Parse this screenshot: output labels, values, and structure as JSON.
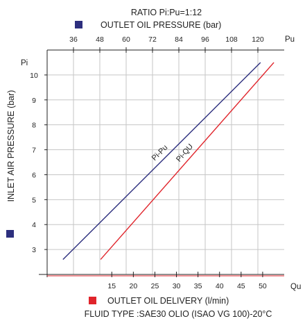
{
  "chart_data": {
    "type": "line",
    "title": "RATIO Pi:Pu=1:12",
    "subtitle": "FLUID TYPE :SAE30 OLIO (ISAO VG 100)-20°C",
    "axes": {
      "y_left": {
        "short_label": "Pi",
        "legend_label": "INLET AIR PRESSURE (bar)",
        "range": [
          2,
          11
        ],
        "ticks": [
          3,
          4,
          5,
          6,
          7,
          8,
          9,
          10
        ],
        "color": "#2d2f7e"
      },
      "x_top": {
        "short_label": "Pu",
        "legend_label": "OUTLET OIL PRESSURE (bar)",
        "range": [
          24,
          132
        ],
        "ticks": [
          36,
          48,
          60,
          72,
          84,
          96,
          108,
          120
        ],
        "color": "#2d2f7e"
      },
      "x_bottom": {
        "short_label": "Qu",
        "legend_label": "OUTLET OIL DELIVERY (l/min)",
        "range": [
          0,
          55
        ],
        "ticks": [
          15,
          20,
          25,
          30,
          35,
          40,
          45,
          50
        ],
        "color": "#e0242b"
      }
    },
    "grid": true,
    "series": [
      {
        "name": "Pi-Pu",
        "color": "#2d2f7e",
        "x_axis": "x_top",
        "x": [
          31.2,
          121.2
        ],
        "y": [
          2.6,
          10.5
        ]
      },
      {
        "name": "Pi-QU",
        "color": "#e0242b",
        "x_axis": "x_bottom",
        "x": [
          12.4,
          52.6
        ],
        "y": [
          2.6,
          10.5
        ]
      }
    ]
  }
}
